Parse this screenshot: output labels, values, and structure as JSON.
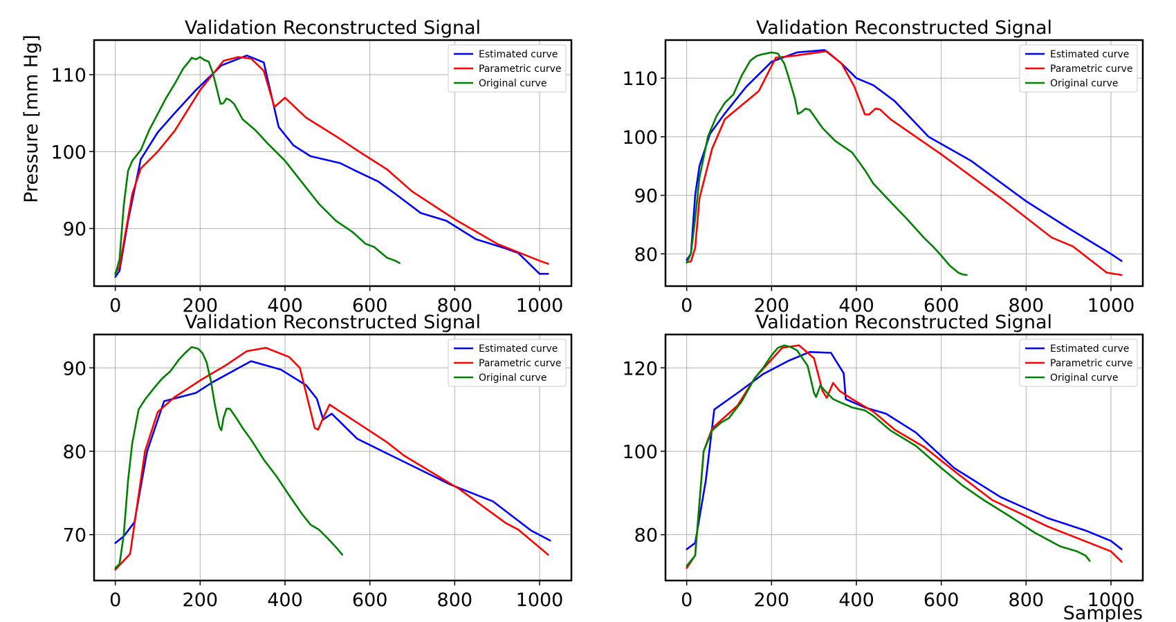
{
  "figure": {
    "ylabel": "Pressure [mm Hg]",
    "xlabel": "Samples"
  },
  "chart_data": [
    {
      "type": "line",
      "title": "Validation Reconstructed Signal",
      "xlim": [
        -50,
        1075
      ],
      "ylim": [
        82.5,
        114.5
      ],
      "xticks": [
        0,
        200,
        400,
        600,
        800,
        1000
      ],
      "yticks": [
        90,
        100,
        110
      ],
      "grid": true,
      "legend": "top-right",
      "series": [
        {
          "name": "Estimated curve",
          "color": "#0000ff",
          "x": [
            0,
            10,
            30,
            60,
            100,
            140,
            190,
            250,
            310,
            350,
            385,
            420,
            460,
            530,
            570,
            620,
            660,
            720,
            780,
            850,
            920,
            950,
            1000,
            1020
          ],
          "y": [
            83.7,
            84.5,
            91,
            99,
            102.5,
            105,
            108,
            111.2,
            112.5,
            111.6,
            103.2,
            100.8,
            99.4,
            98.5,
            97.4,
            96.1,
            94.5,
            92,
            91,
            88.6,
            87.4,
            86.8,
            84.1,
            84.1
          ]
        },
        {
          "name": "Parametric curve",
          "color": "#ff0000",
          "x": [
            0,
            10,
            40,
            60,
            100,
            140,
            200,
            255,
            290,
            320,
            350,
            375,
            400,
            450,
            520,
            580,
            640,
            700,
            800,
            900,
            1000,
            1020
          ],
          "y": [
            84.2,
            85,
            94.5,
            97.8,
            100,
            102.7,
            108,
            111.8,
            112.3,
            112.1,
            110.5,
            105.8,
            107,
            104.4,
            102,
            99.8,
            97.7,
            94.8,
            91.2,
            88,
            85.8,
            85.4
          ]
        },
        {
          "name": "Original curve",
          "color": "#008000",
          "x": [
            0,
            10,
            20,
            30,
            40,
            50,
            60,
            70,
            80,
            100,
            120,
            140,
            160,
            175,
            180,
            190,
            200,
            205,
            210,
            220,
            230,
            240,
            248,
            255,
            262,
            270,
            280,
            300,
            330,
            360,
            400,
            440,
            480,
            520,
            560,
            590,
            610,
            625,
            640,
            660,
            670
          ],
          "y": [
            84,
            86,
            93,
            97.5,
            98.8,
            99.5,
            100.2,
            101.5,
            102.8,
            104.9,
            107,
            108.8,
            110.8,
            111.8,
            112.2,
            112,
            112.3,
            112.1,
            111.9,
            111.7,
            110.2,
            108,
            106.2,
            106.3,
            106.9,
            106.7,
            106.2,
            104.2,
            102.8,
            101,
            98.8,
            96,
            93.2,
            91,
            89.5,
            88,
            87.6,
            86.9,
            86.2,
            85.8,
            85.5
          ]
        }
      ]
    },
    {
      "type": "line",
      "title": "Validation Reconstructed Signal",
      "xlim": [
        -50,
        1075
      ],
      "ylim": [
        74.5,
        116.5
      ],
      "xticks": [
        0,
        200,
        400,
        600,
        800,
        1000
      ],
      "yticks": [
        80,
        90,
        100,
        110
      ],
      "grid": true,
      "legend": "top-right",
      "series": [
        {
          "name": "Estimated curve",
          "color": "#0000ff",
          "x": [
            0,
            10,
            20,
            30,
            55,
            90,
            140,
            200,
            260,
            325,
            365,
            400,
            440,
            490,
            570,
            670,
            800,
            900,
            1000,
            1025
          ],
          "y": [
            79,
            80,
            90,
            95,
            100.5,
            104,
            108.5,
            112.8,
            114.4,
            114.8,
            112.5,
            110,
            108.8,
            106.1,
            100,
            95.9,
            89,
            84.4,
            80,
            78.8
          ]
        },
        {
          "name": "Parametric curve",
          "color": "#ff0000",
          "x": [
            0,
            10,
            20,
            30,
            60,
            90,
            170,
            210,
            250,
            330,
            365,
            395,
            420,
            430,
            445,
            455,
            480,
            600,
            750,
            860,
            910,
            990,
            1025
          ],
          "y": [
            78.6,
            78.7,
            81,
            89.5,
            98,
            103,
            107.8,
            113.5,
            113.8,
            114.6,
            112.5,
            108.6,
            103.8,
            103.8,
            104.8,
            104.7,
            103,
            97,
            89,
            82.8,
            81.3,
            76.8,
            76.4
          ]
        },
        {
          "name": "Original curve",
          "color": "#008000",
          "x": [
            0,
            10,
            20,
            30,
            50,
            70,
            90,
            110,
            130,
            150,
            165,
            180,
            200,
            215,
            230,
            240,
            255,
            262,
            270,
            280,
            290,
            320,
            350,
            390,
            420,
            440,
            480,
            520,
            560,
            580,
            600,
            620,
            640,
            650,
            660
          ],
          "y": [
            78.5,
            80,
            86,
            93,
            100,
            103.5,
            105.8,
            107.2,
            110.5,
            113,
            113.8,
            114.1,
            114.4,
            114.2,
            112.5,
            110.2,
            106.5,
            103.9,
            104.2,
            104.8,
            104.6,
            101.5,
            99.3,
            97.3,
            94.3,
            92,
            88.9,
            85.9,
            82.7,
            81.3,
            79.7,
            78,
            76.8,
            76.5,
            76.4
          ]
        }
      ]
    },
    {
      "type": "line",
      "title": "Validation Reconstructed Signal",
      "xlim": [
        -50,
        1075
      ],
      "ylim": [
        64.5,
        94
      ],
      "xticks": [
        0,
        200,
        400,
        600,
        800,
        1000
      ],
      "yticks": [
        70,
        80,
        90
      ],
      "grid": true,
      "legend": "top-right",
      "series": [
        {
          "name": "Estimated curve",
          "color": "#0000ff",
          "x": [
            0,
            20,
            45,
            75,
            115,
            190,
            230,
            320,
            390,
            450,
            475,
            490,
            510,
            570,
            650,
            790,
            890,
            980,
            1025
          ],
          "y": [
            69,
            69.8,
            71.5,
            80,
            86,
            87,
            88.3,
            90.8,
            89.8,
            87.9,
            86.3,
            83.8,
            84.5,
            81.5,
            79.5,
            76,
            74,
            70.5,
            69.3
          ]
        },
        {
          "name": "Parametric curve",
          "color": "#ff0000",
          "x": [
            0,
            35,
            70,
            100,
            140,
            200,
            260,
            310,
            355,
            410,
            435,
            470,
            478,
            490,
            505,
            640,
            680,
            810,
            920,
            950,
            1020
          ],
          "y": [
            65.8,
            67.7,
            80,
            84.7,
            86.5,
            88.5,
            90.3,
            92,
            92.4,
            91.3,
            90,
            82.8,
            82.6,
            84,
            85.6,
            81.1,
            79.5,
            75.5,
            71.4,
            70.6,
            67.6
          ]
        },
        {
          "name": "Original curve",
          "color": "#008000",
          "x": [
            0,
            10,
            20,
            30,
            40,
            55,
            70,
            90,
            110,
            130,
            150,
            165,
            180,
            195,
            205,
            215,
            225,
            235,
            245,
            250,
            255,
            262,
            270,
            285,
            300,
            320,
            350,
            380,
            410,
            440,
            460,
            480,
            500,
            520,
            535
          ],
          "y": [
            66,
            66.5,
            70,
            76.5,
            81,
            85,
            86.2,
            87.5,
            88.7,
            89.6,
            91,
            91.8,
            92.5,
            92.3,
            91.8,
            90.7,
            88.5,
            85.5,
            83,
            82.5,
            84,
            85.1,
            85.1,
            84,
            82.8,
            81.4,
            79,
            77,
            74.7,
            72.5,
            71.2,
            70.6,
            69.6,
            68.5,
            67.6
          ]
        }
      ]
    },
    {
      "type": "line",
      "title": "Validation Reconstructed Signal",
      "xlim": [
        -50,
        1075
      ],
      "ylim": [
        69,
        128
      ],
      "xticks": [
        0,
        200,
        400,
        600,
        800,
        1000
      ],
      "yticks": [
        80,
        100,
        120
      ],
      "grid": true,
      "legend": "top-right",
      "series": [
        {
          "name": "Estimated curve",
          "color": "#0000ff",
          "x": [
            0,
            20,
            45,
            65,
            120,
            180,
            240,
            290,
            340,
            370,
            375,
            420,
            470,
            540,
            630,
            740,
            850,
            940,
            1000,
            1025
          ],
          "y": [
            76.5,
            78,
            93,
            110,
            114,
            118.5,
            121.7,
            123.8,
            123.6,
            118.7,
            112.5,
            110.5,
            109,
            104.5,
            96,
            89,
            84,
            81,
            78.5,
            76.5
          ]
        },
        {
          "name": "Parametric curve",
          "color": "#ff0000",
          "x": [
            0,
            20,
            40,
            60,
            120,
            160,
            225,
            265,
            300,
            320,
            330,
            345,
            360,
            390,
            440,
            490,
            560,
            640,
            720,
            850,
            950,
            1000,
            1025
          ],
          "y": [
            72,
            75,
            100,
            105.5,
            111,
            117.5,
            124.8,
            125.4,
            122.3,
            114.5,
            112.8,
            116.4,
            114.5,
            112.5,
            109.5,
            105.2,
            101,
            94.5,
            88.3,
            82,
            78,
            76,
            73.5
          ]
        },
        {
          "name": "Original curve",
          "color": "#008000",
          "x": [
            0,
            20,
            40,
            60,
            80,
            100,
            130,
            160,
            180,
            200,
            215,
            230,
            245,
            260,
            285,
            300,
            305,
            315,
            325,
            345,
            360,
            390,
            420,
            440,
            480,
            540,
            600,
            650,
            700,
            760,
            820,
            880,
            920,
            940,
            950
          ],
          "y": [
            72.5,
            75,
            100,
            105,
            106.8,
            108,
            112,
            117.5,
            120,
            123,
            124.8,
            125.4,
            125,
            124.2,
            120.5,
            114,
            113,
            115.8,
            114.6,
            112.5,
            111.8,
            110.5,
            109.8,
            108.5,
            105,
            101.3,
            96,
            91.8,
            88.3,
            84.5,
            80.5,
            77.2,
            76,
            75,
            73.7
          ]
        }
      ]
    }
  ]
}
